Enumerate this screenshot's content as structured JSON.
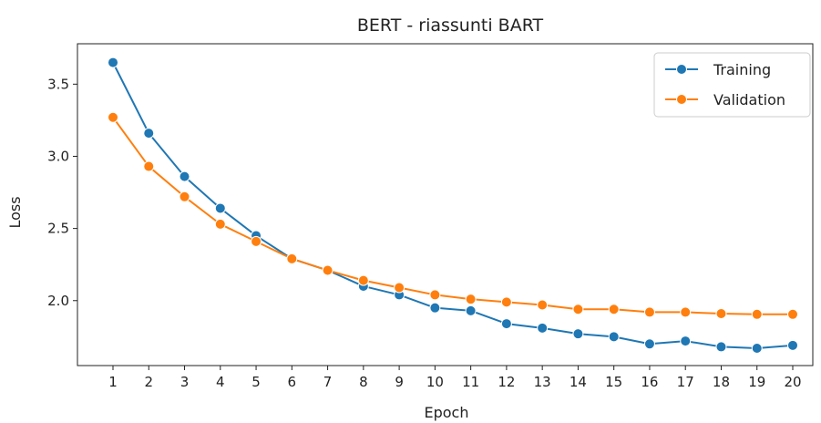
{
  "chart_data": {
    "type": "line",
    "title": "BERT - riassunti BART",
    "xlabel": "Epoch",
    "ylabel": "Loss",
    "x": [
      1,
      2,
      3,
      4,
      5,
      6,
      7,
      8,
      9,
      10,
      11,
      12,
      13,
      14,
      15,
      16,
      17,
      18,
      19,
      20
    ],
    "xticks": [
      "1",
      "2",
      "3",
      "4",
      "5",
      "6",
      "7",
      "8",
      "9",
      "10",
      "11",
      "12",
      "13",
      "14",
      "15",
      "16",
      "17",
      "18",
      "19",
      "20"
    ],
    "ylim": [
      1.55,
      3.78
    ],
    "yticks": [
      "2.0",
      "2.5",
      "3.0",
      "3.5"
    ],
    "grid": false,
    "legend_position": "top-right",
    "series": [
      {
        "name": "Training",
        "color": "#1f77b4",
        "values": [
          3.65,
          3.16,
          2.86,
          2.64,
          2.45,
          2.29,
          2.21,
          2.1,
          2.04,
          1.95,
          1.93,
          1.84,
          1.81,
          1.77,
          1.75,
          1.7,
          1.72,
          1.68,
          1.67,
          1.69
        ]
      },
      {
        "name": "Validation",
        "color": "#ff7f0e",
        "values": [
          3.27,
          2.93,
          2.72,
          2.53,
          2.41,
          2.29,
          2.21,
          2.14,
          2.09,
          2.04,
          2.01,
          1.99,
          1.97,
          1.94,
          1.94,
          1.92,
          1.92,
          1.91,
          1.905,
          1.905
        ]
      }
    ]
  }
}
